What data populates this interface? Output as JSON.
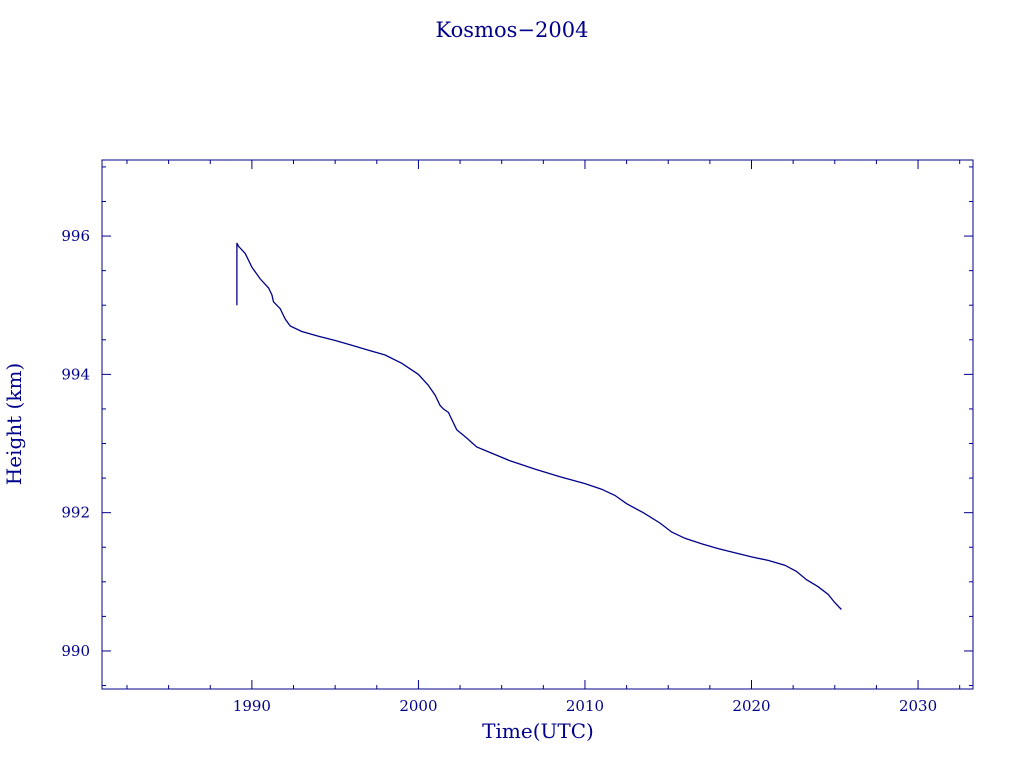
{
  "colors": {
    "ink": "#00008b",
    "background": "#ffffff"
  },
  "chart_data": {
    "type": "line",
    "title": "Kosmos−2004",
    "xlabel": "Time(UTC)",
    "ylabel": "Height (km)",
    "xlim": [
      1981,
      2033.3
    ],
    "ylim": [
      989.45,
      997.1
    ],
    "xticks": [
      1990,
      2000,
      2010,
      2020,
      2030
    ],
    "yticks": [
      990,
      992,
      994,
      996
    ],
    "grid": false,
    "series": [
      {
        "values": [
          [
            1989.1,
            995.0
          ],
          [
            1989.1,
            995.9
          ],
          [
            1989.2,
            995.85
          ],
          [
            1989.6,
            995.75
          ],
          [
            1990.0,
            995.55
          ],
          [
            1990.5,
            995.38
          ],
          [
            1991.0,
            995.25
          ],
          [
            1991.2,
            995.15
          ],
          [
            1991.3,
            995.05
          ],
          [
            1991.7,
            994.95
          ],
          [
            1992.0,
            994.8
          ],
          [
            1992.3,
            994.7
          ],
          [
            1993.0,
            994.62
          ],
          [
            1994.0,
            994.55
          ],
          [
            1995.0,
            994.49
          ],
          [
            1996.0,
            994.42
          ],
          [
            1997.0,
            994.35
          ],
          [
            1998.0,
            994.28
          ],
          [
            1999.0,
            994.16
          ],
          [
            2000.0,
            994.0
          ],
          [
            2000.6,
            993.84
          ],
          [
            2001.0,
            993.7
          ],
          [
            2001.3,
            993.55
          ],
          [
            2001.5,
            993.5
          ],
          [
            2001.8,
            993.45
          ],
          [
            2002.3,
            993.2
          ],
          [
            2002.9,
            993.08
          ],
          [
            2003.5,
            992.95
          ],
          [
            2004.5,
            992.85
          ],
          [
            2005.5,
            992.75
          ],
          [
            2007.0,
            992.63
          ],
          [
            2008.5,
            992.52
          ],
          [
            2010.0,
            992.42
          ],
          [
            2011.0,
            992.34
          ],
          [
            2011.8,
            992.25
          ],
          [
            2012.5,
            992.13
          ],
          [
            2013.5,
            992.0
          ],
          [
            2014.5,
            991.85
          ],
          [
            2015.2,
            991.72
          ],
          [
            2016.0,
            991.63
          ],
          [
            2017.0,
            991.55
          ],
          [
            2018.0,
            991.48
          ],
          [
            2019.0,
            991.42
          ],
          [
            2020.0,
            991.36
          ],
          [
            2021.0,
            991.31
          ],
          [
            2022.0,
            991.24
          ],
          [
            2022.7,
            991.15
          ],
          [
            2023.3,
            991.03
          ],
          [
            2024.0,
            990.93
          ],
          [
            2024.6,
            990.82
          ],
          [
            2025.0,
            990.7
          ],
          [
            2025.4,
            990.6
          ]
        ]
      }
    ]
  }
}
